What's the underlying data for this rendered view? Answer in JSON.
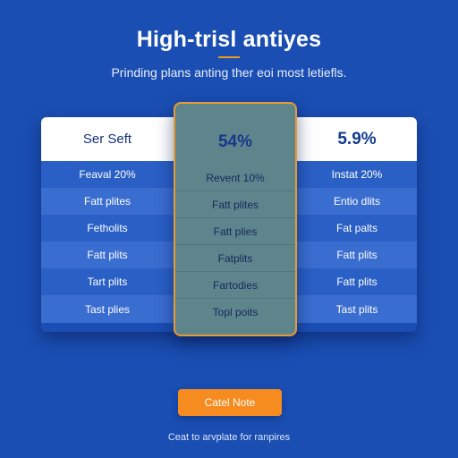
{
  "header": {
    "title": "High-trisl antiyes",
    "subtitle": "Prinding plans anting ther eoi most letiefls."
  },
  "plans": {
    "left": {
      "heading": "Ser Seft",
      "features": [
        "Feaval 20%",
        "Fatt plites",
        "Fetholits",
        "Fatt plits",
        "Tart plits",
        "Tast plies"
      ]
    },
    "middle": {
      "heading": "54%",
      "features": [
        "Revent 10%",
        "Fatt plites",
        "Fatt plies",
        "Fatplits",
        "Fartodies",
        "Topl poits"
      ]
    },
    "right": {
      "heading": "5.9%",
      "features": [
        "Instat 20%",
        "Entio dlits",
        "Fat palts",
        "Fatt plits",
        "Fatt plits",
        "Tast plits"
      ]
    }
  },
  "cta": {
    "label": "Catel Note"
  },
  "footer": {
    "note": "Ceat to arvplate for ranpires"
  },
  "colors": {
    "background": "#1a4eb2",
    "accent": "#f68b1f",
    "featured_column": "#5f858c",
    "featured_border": "#e79a33"
  }
}
